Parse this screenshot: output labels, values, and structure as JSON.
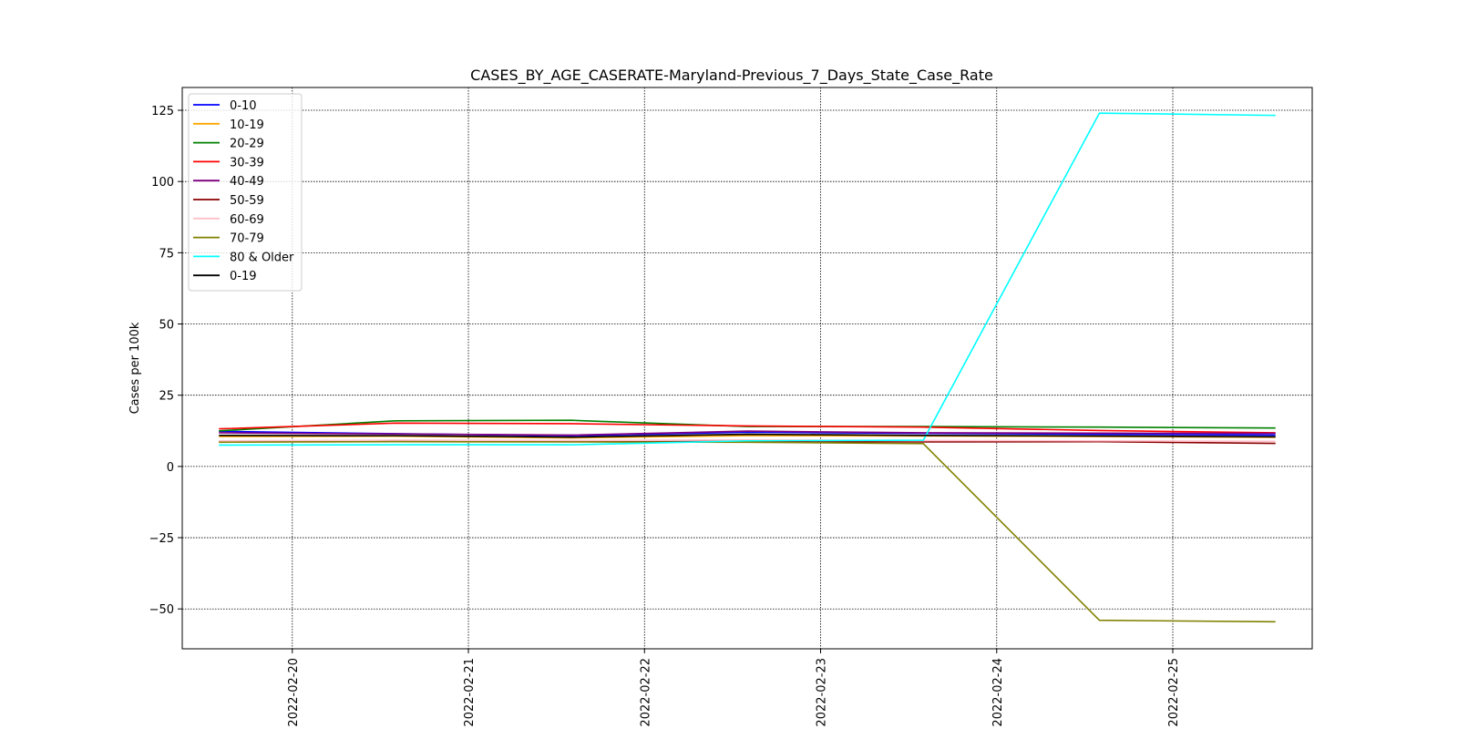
{
  "chart_data": {
    "type": "line",
    "title": "CASES_BY_AGE_CASERATE-Maryland-Previous_7_Days_State_Case_Rate",
    "xlabel": "",
    "ylabel": "Cases per 100k",
    "x": [
      "2022-02-19T14:00",
      "2022-02-20T14:00",
      "2022-02-21T14:00",
      "2022-02-22T14:00",
      "2022-02-23T14:00",
      "2022-02-24T14:00",
      "2022-02-25T14:00"
    ],
    "x_ticks": [
      "2022-02-20",
      "2022-02-21",
      "2022-02-22",
      "2022-02-23",
      "2022-02-24",
      "2022-02-25"
    ],
    "xlim": [
      "2022-02-19T09:00",
      "2022-02-25T19:00"
    ],
    "ylim": [
      -64,
      133
    ],
    "y_ticks": [
      125,
      100,
      75,
      50,
      25,
      0,
      -25,
      -50
    ],
    "grid": true,
    "legend_position": "top-left",
    "series": [
      {
        "name": "0-10",
        "color": "#0000ff",
        "values": [
          12.3,
          11.5,
          10.8,
          12.0,
          11.6,
          11.3,
          11.0
        ]
      },
      {
        "name": "10-19",
        "color": "#ffa500",
        "values": [
          10.5,
          10.6,
          10.0,
          10.8,
          10.7,
          10.5,
          10.2
        ]
      },
      {
        "name": "20-29",
        "color": "#008000",
        "values": [
          12.5,
          16.0,
          16.2,
          14.0,
          14.0,
          13.8,
          13.5
        ]
      },
      {
        "name": "30-39",
        "color": "#ff0000",
        "values": [
          13.2,
          15.2,
          15.0,
          14.2,
          13.8,
          12.6,
          11.8
        ]
      },
      {
        "name": "40-49",
        "color": "#800080",
        "values": [
          11.8,
          11.4,
          11.0,
          12.4,
          11.8,
          11.7,
          11.6
        ]
      },
      {
        "name": "50-59",
        "color": "#8b0000",
        "values": [
          8.8,
          8.9,
          8.7,
          8.8,
          8.6,
          8.7,
          8.1
        ]
      },
      {
        "name": "60-69",
        "color": "#ffc0cb",
        "values": [
          9.0,
          9.2,
          9.1,
          9.3,
          9.1,
          9.0,
          8.8
        ]
      },
      {
        "name": "70-79",
        "color": "#808000",
        "values": [
          8.5,
          8.7,
          8.6,
          8.5,
          8.0,
          -54.0,
          -54.5
        ]
      },
      {
        "name": "80 & Older",
        "color": "#00ffff",
        "values": [
          7.5,
          7.6,
          7.6,
          9.0,
          9.2,
          124.0,
          123.2
        ]
      },
      {
        "name": "0-19",
        "color": "#000000",
        "values": [
          10.9,
          10.8,
          10.3,
          11.3,
          10.9,
          10.7,
          10.4
        ]
      }
    ]
  }
}
